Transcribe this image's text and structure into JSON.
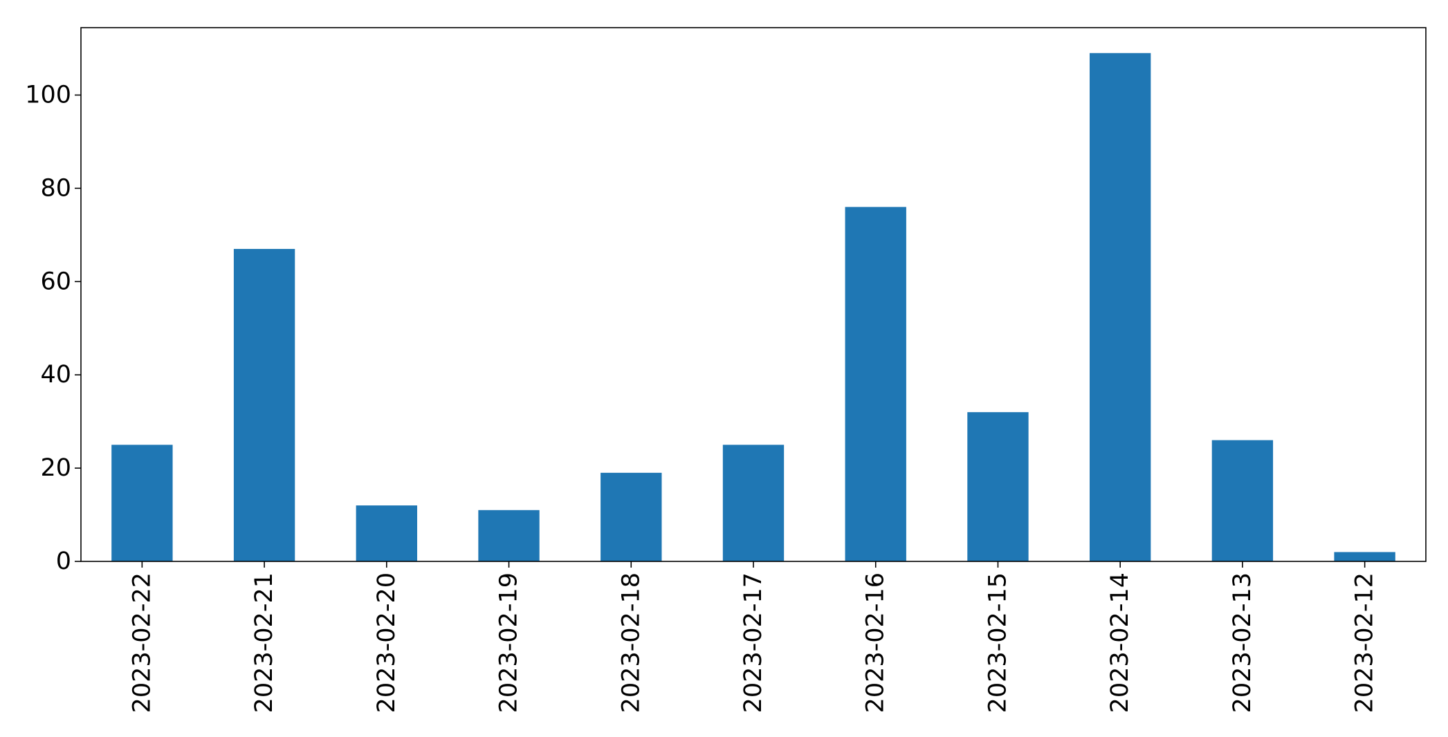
{
  "chart_data": {
    "type": "bar",
    "categories": [
      "2023-02-22",
      "2023-02-21",
      "2023-02-20",
      "2023-02-19",
      "2023-02-18",
      "2023-02-17",
      "2023-02-16",
      "2023-02-15",
      "2023-02-14",
      "2023-02-13",
      "2023-02-12"
    ],
    "values": [
      25,
      67,
      12,
      11,
      19,
      25,
      76,
      32,
      109,
      26,
      2
    ],
    "title": "",
    "xlabel": "",
    "ylabel": "",
    "ylim": [
      0,
      114.45
    ],
    "yticks": [
      0,
      20,
      40,
      60,
      80,
      100
    ],
    "bar_color": "#1f77b4",
    "grid": false,
    "legend": "none"
  }
}
